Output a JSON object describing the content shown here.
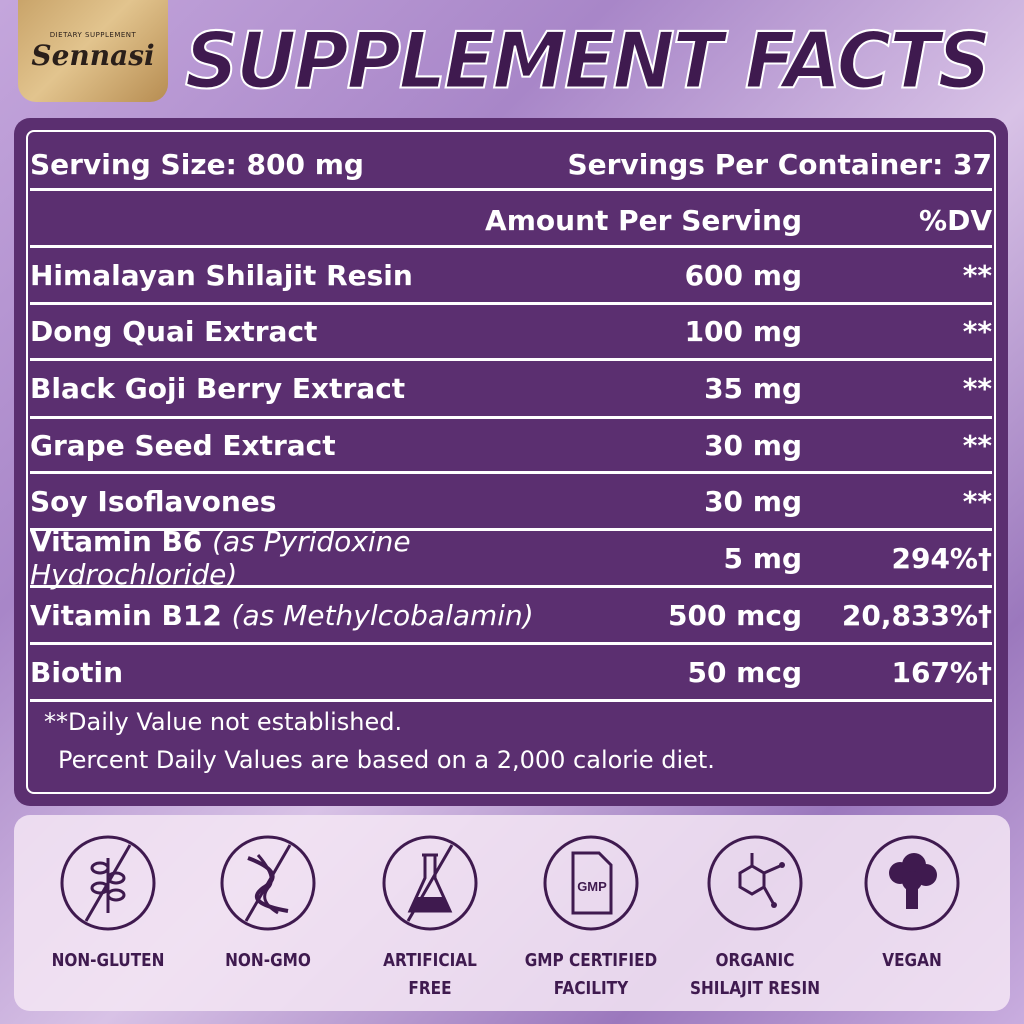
{
  "logo": {
    "brand": "Sennasi",
    "tagline": "DIETARY SUPPLEMENT"
  },
  "title": "SUPPLEMENT FACTS",
  "serving_size": "Serving Size: 800 mg",
  "servings_per_container": "Servings Per Container: 37",
  "header": {
    "amount": "Amount Per Serving",
    "dv": "%DV"
  },
  "rows": [
    {
      "name": "Himalayan Shilajit Resin",
      "note": "",
      "amount": "600 mg",
      "dv": "**"
    },
    {
      "name": "Dong Quai Extract",
      "note": "",
      "amount": "100 mg",
      "dv": "**"
    },
    {
      "name": "Black Goji Berry Extract",
      "note": "",
      "amount": "35 mg",
      "dv": "**"
    },
    {
      "name": "Grape Seed Extract",
      "note": "",
      "amount": "30 mg",
      "dv": "**"
    },
    {
      "name": "Soy Isoflavones",
      "note": "",
      "amount": "30 mg",
      "dv": "**"
    },
    {
      "name": "Vitamin B6",
      "note": "(as Pyridoxine Hydrochloride)",
      "amount": "5 mg",
      "dv": "294%†"
    },
    {
      "name": "Vitamin B12",
      "note": "(as Methylcobalamin)",
      "amount": "500 mcg",
      "dv": "20,833%†"
    },
    {
      "name": "Biotin",
      "note": "",
      "amount": "50 mcg",
      "dv": "167%†"
    }
  ],
  "footnotes": [
    "**Daily Value not established.",
    "Percent Daily Values are based on a 2,000 calorie diet."
  ],
  "badges": [
    {
      "icon": "no-wheat-icon",
      "label": "NON-GLUTEN"
    },
    {
      "icon": "no-dna-icon",
      "label": "NON-GMO"
    },
    {
      "icon": "no-flask-icon",
      "label": "ARTIFICIAL FREE"
    },
    {
      "icon": "gmp-document-icon",
      "label": "GMP CERTIFIED FACILITY",
      "icon_text": "GMP"
    },
    {
      "icon": "molecule-icon",
      "label": "ORGANIC SHILAJIT RESIN"
    },
    {
      "icon": "broccoli-icon",
      "label": "VEGAN"
    }
  ]
}
